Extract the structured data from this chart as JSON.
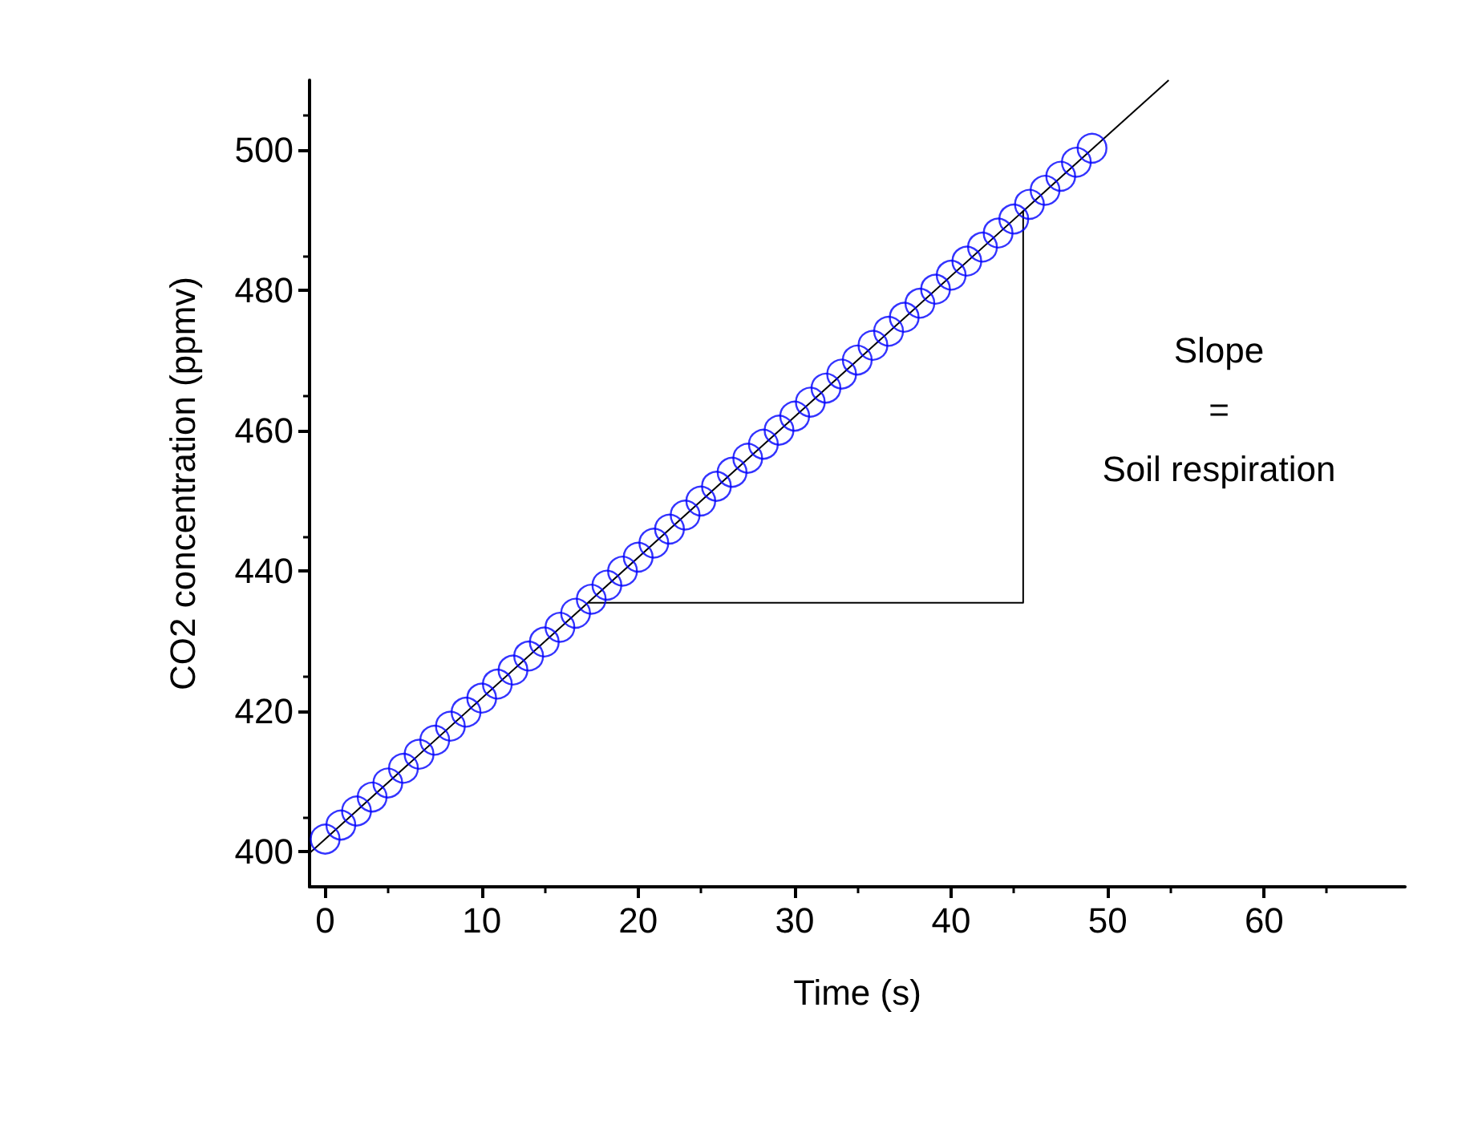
{
  "chart_data": {
    "type": "scatter",
    "xlabel": "Time (s)",
    "ylabel": "CO2 concentration (ppmv)",
    "x": [
      0,
      1,
      2,
      3,
      4,
      5,
      6,
      7,
      8,
      9,
      10,
      11,
      12,
      13,
      14,
      15,
      16,
      17,
      18,
      19,
      20,
      21,
      22,
      23,
      24,
      25,
      26,
      27,
      28,
      29,
      30,
      31,
      32,
      33,
      34,
      35,
      36,
      37,
      38,
      39,
      40,
      41,
      42,
      43,
      44,
      45,
      46,
      47,
      48,
      49
    ],
    "series": [
      {
        "color": "#0000ff",
        "marker": "circle",
        "values": [
          401.8,
          403.8,
          405.8,
          407.8,
          409.8,
          411.9,
          413.9,
          415.9,
          417.9,
          419.9,
          421.9,
          423.9,
          425.9,
          427.9,
          429.9,
          432.0,
          434.0,
          436.0,
          438.0,
          440.0,
          442.0,
          444.0,
          446.0,
          448.0,
          450.0,
          452.1,
          454.1,
          456.1,
          458.1,
          460.1,
          462.1,
          464.1,
          466.1,
          468.1,
          470.1,
          472.2,
          474.2,
          476.2,
          478.2,
          480.2,
          482.2,
          484.2,
          486.2,
          488.2,
          490.2,
          492.3,
          494.3,
          496.3,
          498.3,
          500.3
        ]
      },
      {
        "type": "line",
        "color": "#000000",
        "marker": "none",
        "line_style": "solid",
        "x": [
          -1,
          53.9
        ],
        "values": [
          399.8,
          510
        ]
      },
      {
        "type": "line",
        "color": "#000000",
        "marker": "none",
        "line_style": "solid",
        "x": [
          16.8,
          44.6,
          44.6
        ],
        "values": [
          435.5,
          435.5,
          491.4
        ]
      }
    ],
    "xlim": [
      -1,
      69
    ],
    "xticks": [
      0,
      10,
      20,
      30,
      40,
      50,
      60
    ],
    "ylim": [
      395,
      510
    ],
    "yticks": [
      400,
      420,
      440,
      460,
      480,
      500
    ],
    "grid": false,
    "annotations": [
      "Slope\n=\nSoil respiration"
    ]
  }
}
